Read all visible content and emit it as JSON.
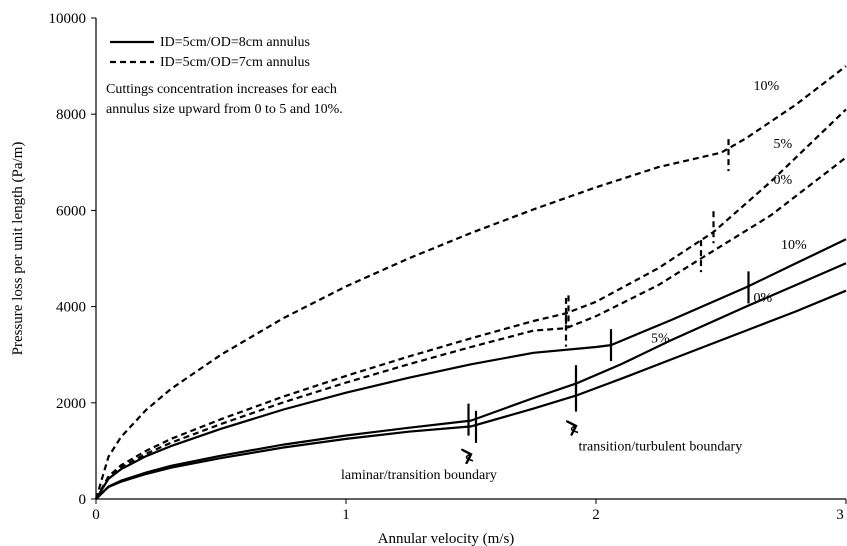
{
  "chart_data": {
    "type": "line",
    "title": "",
    "xlabel": "Annular velocity (m/s)",
    "ylabel": "Pressure loss per unit length (Pa/m)",
    "xlim": [
      0,
      3
    ],
    "ylim": [
      0,
      10000
    ],
    "xticks": [
      "0",
      "1",
      "2",
      "3"
    ],
    "yticks": [
      "0",
      "2000",
      "4000",
      "6000",
      "8000",
      "10000"
    ],
    "grid": false,
    "legend": {
      "position": "top-left",
      "entries": [
        {
          "label": "ID=5cm/OD=8cm annulus",
          "style": "solid"
        },
        {
          "label": "ID=5cm/OD=7cm annulus",
          "style": "dashed"
        }
      ]
    },
    "note": [
      "Cuttings concentration increases for each",
      "annulus size upward from 0 to 5 and 10%."
    ],
    "curve_labels": [
      {
        "text": "10%",
        "x": 2.63,
        "y": 8500
      },
      {
        "text": "5%",
        "x": 2.71,
        "y": 7300
      },
      {
        "text": "0%",
        "x": 2.71,
        "y": 6550
      },
      {
        "text": "10%",
        "x": 2.74,
        "y": 5200
      },
      {
        "text": "5%",
        "x": 2.22,
        "y": 3250
      },
      {
        "text": "0%",
        "x": 2.63,
        "y": 4100
      }
    ],
    "annotations": [
      {
        "text": "laminar/transition boundary",
        "x": 0.98,
        "y": 420,
        "arrow_to": [
          1.5,
          930
        ]
      },
      {
        "text": "transition/turbulent boundary",
        "x": 1.93,
        "y": 1010,
        "arrow_to": [
          1.92,
          1520
        ]
      }
    ],
    "series": [
      {
        "group": "OD=7cm",
        "concentration": "10%",
        "style": "dashed",
        "x": [
          0,
          0.05,
          0.1,
          0.2,
          0.3,
          0.5,
          0.75,
          1.0,
          1.25,
          1.5,
          1.75,
          2.0,
          2.25,
          2.5,
          2.6,
          2.8,
          3.0
        ],
        "y": [
          0,
          880,
          1290,
          1850,
          2290,
          3000,
          3760,
          4420,
          5000,
          5530,
          6020,
          6480,
          6900,
          7200,
          7500,
          8200,
          9000
        ],
        "markers": [
          {
            "x": 1.89,
            "y": 3900
          },
          {
            "x": 2.53,
            "y": 7150
          }
        ]
      },
      {
        "group": "OD=7cm",
        "concentration": "5%",
        "style": "dashed",
        "x": [
          0,
          0.05,
          0.1,
          0.2,
          0.3,
          0.5,
          0.75,
          1.0,
          1.25,
          1.5,
          1.75,
          1.88,
          2.0,
          2.25,
          2.47,
          2.7,
          3.0
        ],
        "y": [
          0,
          470,
          700,
          1000,
          1250,
          1660,
          2130,
          2560,
          2960,
          3340,
          3700,
          3860,
          4100,
          4800,
          5550,
          6600,
          8100
        ],
        "markers": [
          {
            "x": 1.88,
            "y": 3850
          },
          {
            "x": 2.47,
            "y": 5650
          }
        ]
      },
      {
        "group": "OD=7cm",
        "concentration": "0%",
        "style": "dashed",
        "x": [
          0,
          0.05,
          0.1,
          0.2,
          0.3,
          0.5,
          0.75,
          1.0,
          1.25,
          1.5,
          1.75,
          1.88,
          2.0,
          2.25,
          2.42,
          2.7,
          3.0
        ],
        "y": [
          0,
          440,
          650,
          940,
          1170,
          1560,
          2010,
          2420,
          2800,
          3160,
          3500,
          3550,
          3800,
          4450,
          5000,
          5900,
          7100
        ],
        "markers": [
          {
            "x": 1.88,
            "y": 3500
          },
          {
            "x": 2.42,
            "y": 5050
          }
        ]
      },
      {
        "group": "OD=8cm",
        "concentration": "10%",
        "style": "solid",
        "x": [
          0,
          0.05,
          0.1,
          0.2,
          0.3,
          0.5,
          0.75,
          1.0,
          1.25,
          1.5,
          1.75,
          2.0,
          2.06,
          2.3,
          2.6,
          2.8,
          3.0
        ],
        "y": [
          0,
          420,
          620,
          890,
          1100,
          1460,
          1860,
          2210,
          2520,
          2800,
          3040,
          3160,
          3200,
          3720,
          4400,
          4900,
          5400
        ],
        "markers": [
          {
            "x": 2.06,
            "y": 3200
          },
          {
            "x": 2.61,
            "y": 4400
          }
        ]
      },
      {
        "group": "OD=8cm",
        "concentration": "5%",
        "style": "solid",
        "x": [
          0,
          0.05,
          0.1,
          0.2,
          0.3,
          0.5,
          0.75,
          1.0,
          1.25,
          1.5,
          1.75,
          1.92,
          2.1,
          2.3,
          2.6,
          2.8,
          3.0
        ],
        "y": [
          0,
          260,
          380,
          550,
          690,
          900,
          1130,
          1320,
          1480,
          1630,
          2100,
          2400,
          2800,
          3300,
          4000,
          4450,
          4900
        ],
        "markers": [
          {
            "x": 1.49,
            "y": 1650
          },
          {
            "x": 1.92,
            "y": 2450
          }
        ]
      },
      {
        "group": "OD=8cm",
        "concentration": "0%",
        "style": "solid",
        "x": [
          0,
          0.05,
          0.1,
          0.2,
          0.3,
          0.5,
          0.75,
          1.0,
          1.25,
          1.5,
          1.75,
          1.92,
          2.1,
          2.3,
          2.6,
          2.8,
          3.0
        ],
        "y": [
          0,
          250,
          360,
          520,
          650,
          850,
          1070,
          1250,
          1400,
          1510,
          1880,
          2150,
          2500,
          2900,
          3500,
          3900,
          4330
        ],
        "markers": [
          {
            "x": 1.52,
            "y": 1500
          },
          {
            "x": 1.92,
            "y": 2150
          }
        ]
      }
    ]
  }
}
